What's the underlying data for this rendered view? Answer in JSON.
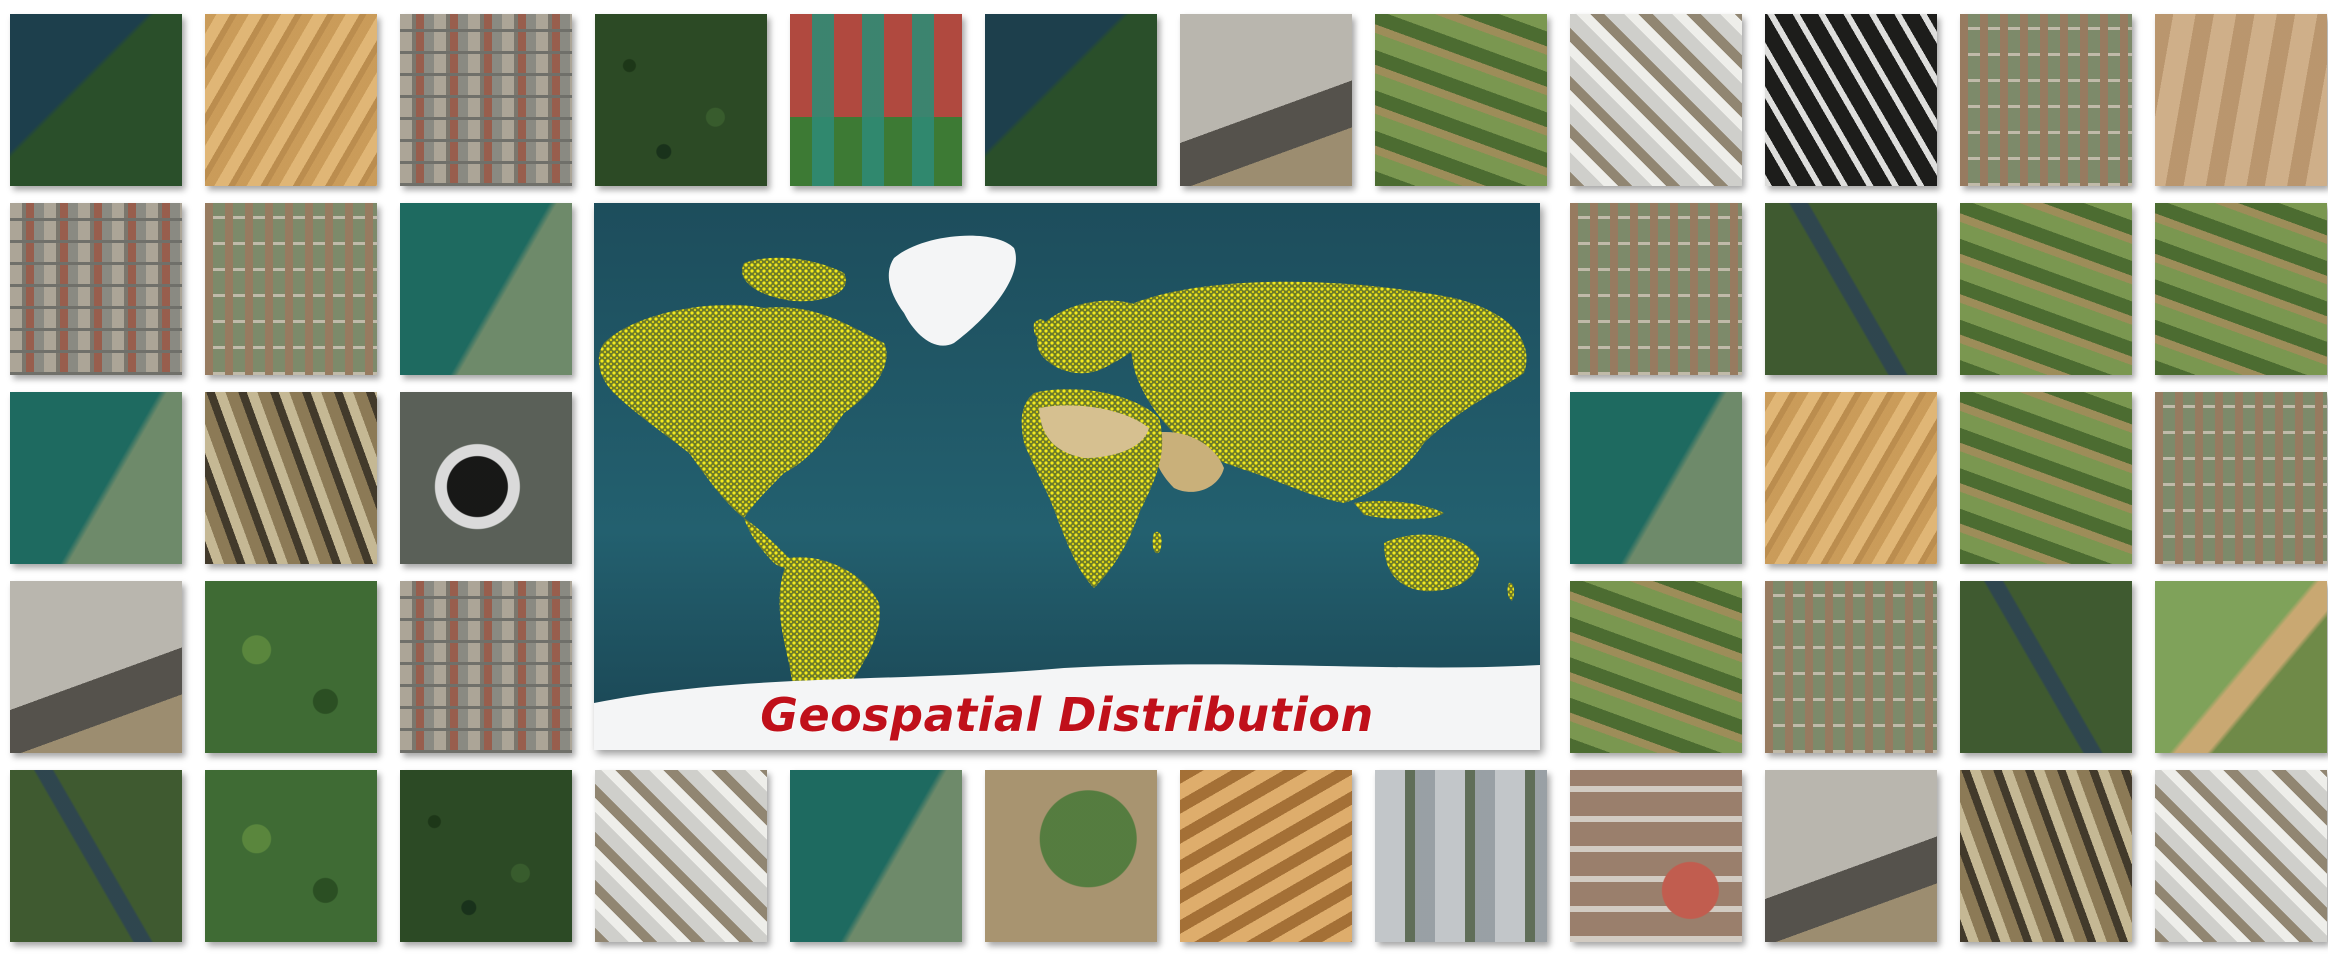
{
  "map": {
    "title": "Geospatial Distribution",
    "colors": {
      "ocean": "#1f5565",
      "land_sample_density": "#e8e21a",
      "ice": "#f4f5f6",
      "title": "#c0101a"
    }
  },
  "tiles": [
    {
      "name": "tile-lake-forest",
      "kind": "t-lake"
    },
    {
      "name": "tile-sand-dunes",
      "kind": "t-sand"
    },
    {
      "name": "tile-stadium",
      "kind": "t-urban"
    },
    {
      "name": "tile-forest",
      "kind": "t-forest"
    },
    {
      "name": "tile-tennis-courts",
      "kind": "t-court"
    },
    {
      "name": "tile-lake-forest-2",
      "kind": "t-lake"
    },
    {
      "name": "tile-highway-parking",
      "kind": "t-highway"
    },
    {
      "name": "tile-farmland-village",
      "kind": "t-farm"
    },
    {
      "name": "tile-snow-mountain",
      "kind": "t-snow"
    },
    {
      "name": "tile-dark-snow-mountain",
      "kind": "t-snowdark"
    },
    {
      "name": "tile-dense-town",
      "kind": "t-town"
    },
    {
      "name": "tile-desert",
      "kind": "t-desert"
    },
    {
      "name": "tile-industrial-buildings",
      "kind": "t-urban"
    },
    {
      "name": "tile-residential-grid",
      "kind": "t-town"
    },
    {
      "name": "tile-harbor",
      "kind": "t-water"
    },
    {
      "name": "tile-village-fields",
      "kind": "t-town"
    },
    {
      "name": "tile-river-forest",
      "kind": "t-river"
    },
    {
      "name": "tile-crop-fields",
      "kind": "t-farm"
    },
    {
      "name": "tile-farmland-road",
      "kind": "t-farm"
    },
    {
      "name": "tile-coastline",
      "kind": "t-water"
    },
    {
      "name": "tile-rocky-mountain",
      "kind": "t-mountain"
    },
    {
      "name": "tile-cooling-tower",
      "kind": "t-plant"
    },
    {
      "name": "tile-waterfront-houses",
      "kind": "t-water"
    },
    {
      "name": "tile-sand-plain",
      "kind": "t-sand"
    },
    {
      "name": "tile-greenhouses",
      "kind": "t-farm"
    },
    {
      "name": "tile-suburb",
      "kind": "t-town"
    },
    {
      "name": "tile-red-roof-lot",
      "kind": "t-highway"
    },
    {
      "name": "tile-interchange",
      "kind": "t-park"
    },
    {
      "name": "tile-row-houses",
      "kind": "t-urban"
    },
    {
      "name": "tile-orchard",
      "kind": "t-farm"
    },
    {
      "name": "tile-rural-village",
      "kind": "t-town"
    },
    {
      "name": "tile-river-meander",
      "kind": "t-river"
    },
    {
      "name": "tile-shoreline",
      "kind": "t-coast"
    },
    {
      "name": "tile-river-farmland",
      "kind": "t-river"
    },
    {
      "name": "tile-hill-village",
      "kind": "t-park"
    },
    {
      "name": "tile-woodland",
      "kind": "t-forest"
    },
    {
      "name": "tile-snowy-hills",
      "kind": "t-snow"
    },
    {
      "name": "tile-bridge-river",
      "kind": "t-water"
    },
    {
      "name": "tile-center-pivot",
      "kind": "t-circle"
    },
    {
      "name": "tile-eroded-terrain",
      "kind": "t-dune2"
    },
    {
      "name": "tile-factory",
      "kind": "t-factory"
    },
    {
      "name": "tile-school-campus",
      "kind": "t-campus"
    },
    {
      "name": "tile-road-junction",
      "kind": "t-highway"
    },
    {
      "name": "tile-mountain-ridges",
      "kind": "t-mountain"
    },
    {
      "name": "tile-snow-ridges",
      "kind": "t-snow"
    }
  ]
}
